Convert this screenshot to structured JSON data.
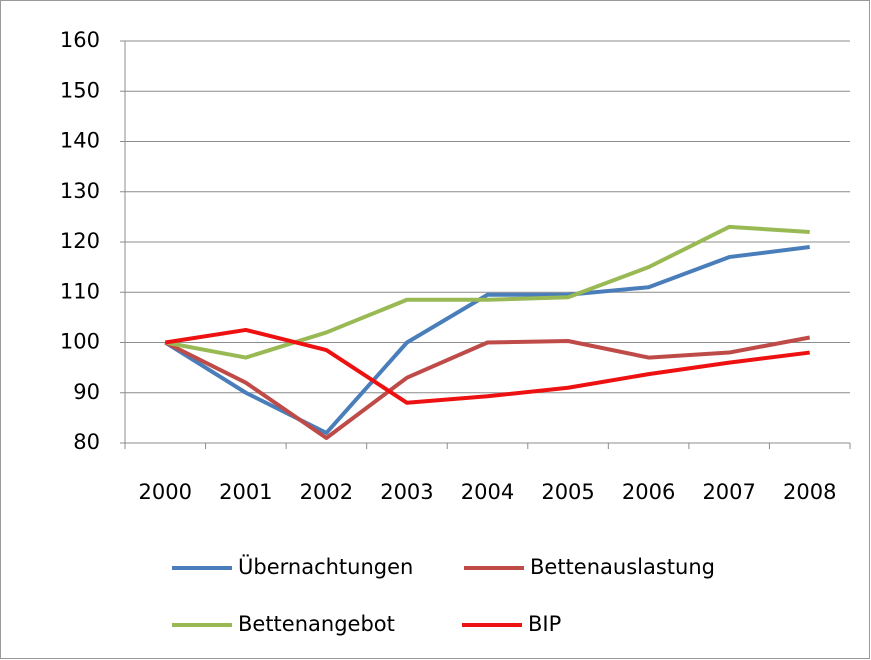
{
  "chart_data": {
    "type": "line",
    "categories": [
      "2000",
      "2001",
      "2002",
      "2003",
      "2004",
      "2005",
      "2006",
      "2007",
      "2008"
    ],
    "series": [
      {
        "name": "Übernachtungen",
        "color": "#4a7ebb",
        "values": [
          100,
          90,
          82,
          100,
          109.5,
          109.5,
          111,
          117,
          119
        ]
      },
      {
        "name": "Bettenauslastung",
        "color": "#be4b48",
        "values": [
          100,
          92,
          81,
          93,
          100,
          100.3,
          97,
          98,
          101
        ]
      },
      {
        "name": "Bettenangebot",
        "color": "#98b954",
        "values": [
          100,
          97,
          102,
          108.5,
          108.5,
          109,
          115,
          123,
          122
        ]
      },
      {
        "name": "BIP",
        "color": "#ee1111",
        "values": [
          100,
          102.5,
          98.5,
          88,
          89.3,
          91,
          93.7,
          96,
          98
        ]
      }
    ],
    "ylim": [
      80,
      160
    ],
    "yticks": [
      80,
      90,
      100,
      110,
      120,
      130,
      140,
      150,
      160
    ],
    "grid": true,
    "legend": "bottom"
  }
}
